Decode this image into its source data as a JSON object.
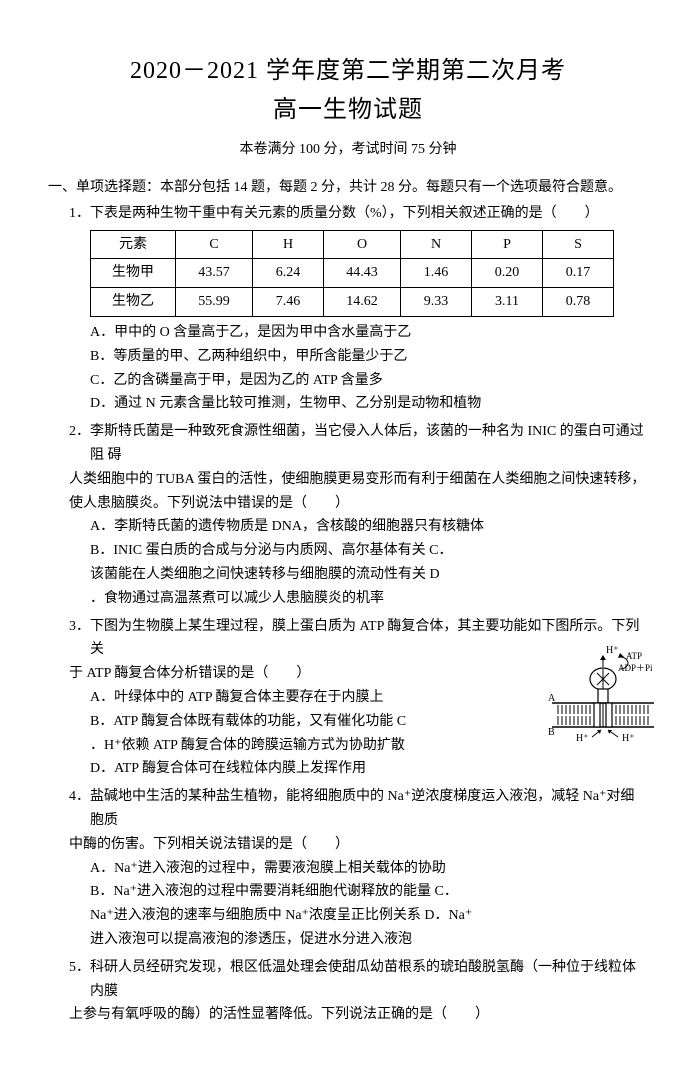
{
  "title_line1": "2020－2021 学年度第二学期第二次月考",
  "title_line2": "高一生物试题",
  "subtitle": "本卷满分 100 分，考试时间 75 分钟",
  "section1_head": "一、单项选择题：本部分包括 14 题，每题 2 分，共计 28 分。每题只有一个选项最符合题意。",
  "q1": {
    "stem": "1．下表是两种生物干重中有关元素的质量分数（%），下列相关叙述正确的是（　　）",
    "table": {
      "headers": [
        "元素",
        "C",
        "H",
        "O",
        "N",
        "P",
        "S"
      ],
      "rows": [
        [
          "生物甲",
          "43.57",
          "6.24",
          "44.43",
          "1.46",
          "0.20",
          "0.17"
        ],
        [
          "生物乙",
          "55.99",
          "7.46",
          "14.62",
          "9.33",
          "3.11",
          "0.78"
        ]
      ],
      "col_widths": [
        "64px",
        "56px",
        "50px",
        "56px",
        "50px",
        "50px",
        "50px"
      ]
    },
    "opts": {
      "A": "A．甲中的 O 含量高于乙，是因为甲中含水量高于乙",
      "B": "B．等质量的甲、乙两种组织中，甲所含能量少于乙",
      "C": "C．乙的含磷量高于甲，是因为乙的 ATP 含量多",
      "D": "D．通过 N 元素含量比较可推测，生物甲、乙分别是动物和植物"
    }
  },
  "q2": {
    "stem1": "2．李斯特氏菌是一种致死食源性细菌，当它侵入人体后，该菌的一种名为 INIC 的蛋白可通过阻 碍",
    "stem2": "人类细胞中的 TUBA 蛋白的活性，使细胞膜更易变形而有利于细菌在人类细胞之间快速转移，使人患脑膜炎。下列说法中错误的是（　　）",
    "opts": {
      "A": "A．李斯特氏菌的遗传物质是 DNA，含核酸的细胞器只有核糖体",
      "B": "B．INIC 蛋白质的合成与分泌与内质网、高尔基体有关 C．",
      "C": "该菌能在人类细胞之间快速转移与细胞膜的流动性有关 D",
      "D": "．食物通过高温蒸煮可以减少人患脑膜炎的机率"
    }
  },
  "q3": {
    "stem1": "3．下图为生物膜上某生理过程，膜上蛋白质为 ATP 酶复合体，其主要功能如下图所示。下列关",
    "stem2": "于 ATP 酶复合体分析错误的是（　　）",
    "opts": {
      "A": "A．叶绿体中的 ATP 酶复合体主要存在于内膜上",
      "B": "B．ATP 酶复合体既有载体的功能，又有催化功能 C",
      "C": "．H⁺依赖 ATP 酶复合体的跨膜运输方式为协助扩散",
      "D": "D．ATP 酶复合体可在线粒体内膜上发挥作用"
    },
    "diagram": {
      "labels": {
        "H_top": "H⁺",
        "ATP": "ATP",
        "ADP": "ADP＋Pi",
        "A": "A",
        "B": "B",
        "H_left": "H⁺",
        "H_right": "H⁺"
      },
      "colors": {
        "stroke": "#000000",
        "fill": "#ffffff"
      }
    }
  },
  "q4": {
    "stem1": "4．盐碱地中生活的某种盐生植物，能将细胞质中的 Na⁺逆浓度梯度运入液泡，减轻 Na⁺对细胞质",
    "stem2": "中酶的伤害。下列相关说法错误的是（　　）",
    "opts": {
      "A": "A．Na⁺进入液泡的过程中，需要液泡膜上相关载体的协助",
      "B": "B．Na⁺进入液泡的过程中需要消耗细胞代谢释放的能量 C．",
      "C": "Na⁺进入液泡的速率与细胞质中 Na⁺浓度呈正比例关系 D．Na⁺",
      "D": "进入液泡可以提高液泡的渗透压，促进水分进入液泡"
    }
  },
  "q5": {
    "stem1": "5．科研人员经研究发现，根区低温处理会使甜瓜幼苗根系的琥珀酸脱氢酶（一种位于线粒体内膜",
    "stem2": "上参与有氧呼吸的酶）的活性显著降低。下列说法正确的是（　　）"
  }
}
